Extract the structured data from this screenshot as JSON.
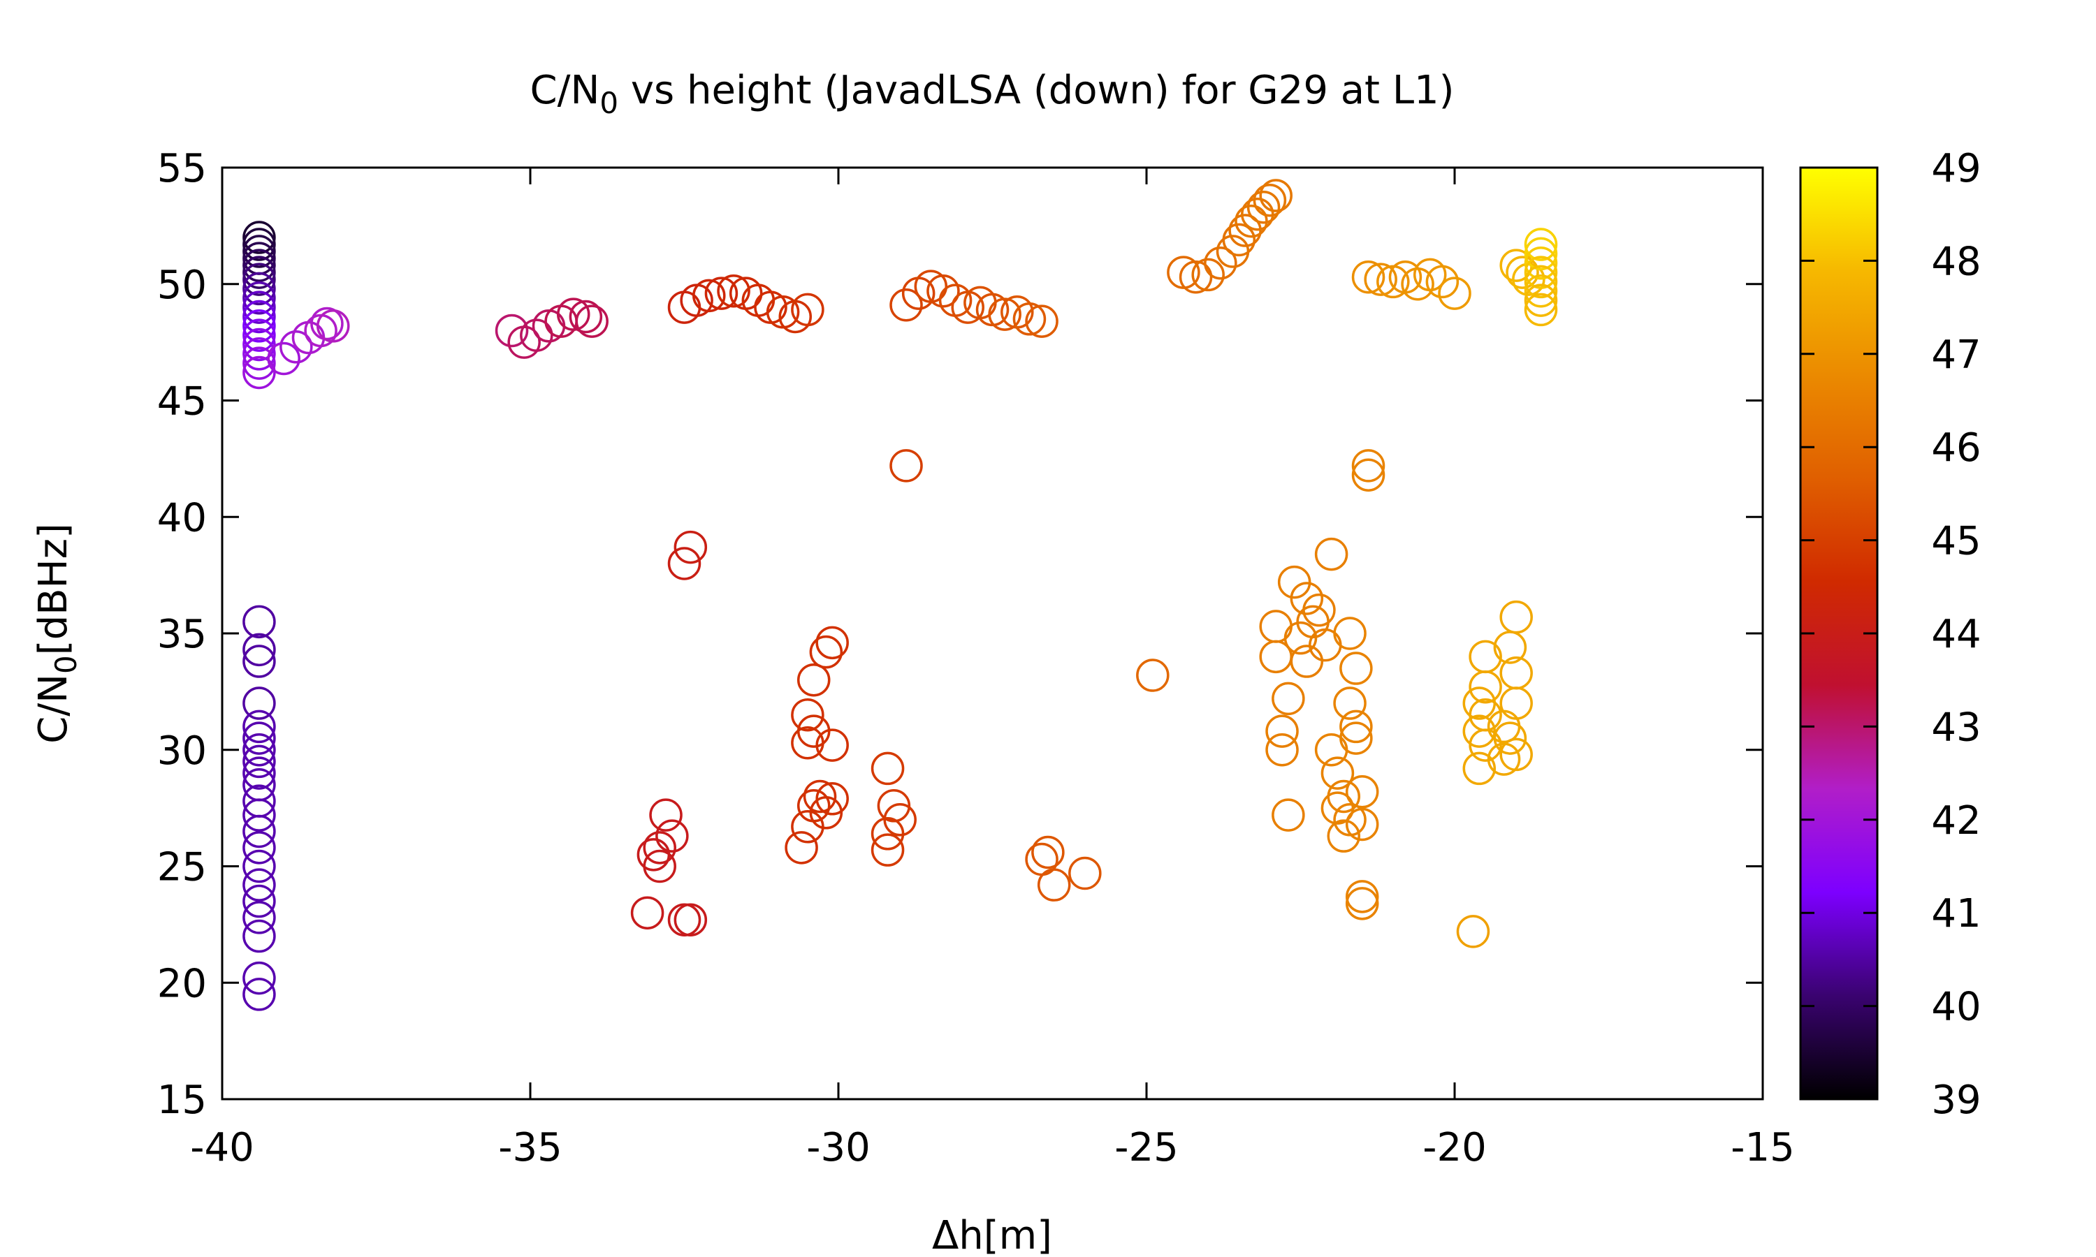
{
  "chart_data": {
    "type": "scatter",
    "title": "C/N",
    "title_sub": "0",
    "title_rest": " vs height (JavadLSA (down) for G29 at L1)",
    "xlabel": "Δh[m]",
    "ylabel": "C/N",
    "ylabel_sub": "0",
    "ylabel_rest": "[dBHz]",
    "xlim": [
      -40,
      -15
    ],
    "ylim": [
      15,
      55
    ],
    "xticks": [
      "-40",
      "-35",
      "-30",
      "-25",
      "-20",
      "-15"
    ],
    "yticks": [
      "15",
      "20",
      "25",
      "30",
      "35",
      "40",
      "45",
      "50",
      "55"
    ],
    "colorbar": {
      "range": [
        39,
        49
      ],
      "ticks": [
        "39",
        "40",
        "41",
        "42",
        "43",
        "44",
        "45",
        "46",
        "47",
        "48",
        "49"
      ],
      "palette": [
        "#000000",
        "#3a0370",
        "#7d00ff",
        "#b11ec8",
        "#c01030",
        "#d02a00",
        "#e05f00",
        "#eb8a00",
        "#f6b800",
        "#ffff00"
      ]
    },
    "marker": "open-circle",
    "grid": false,
    "legend": "none",
    "points": [
      [
        -39.4,
        52,
        39.5
      ],
      [
        -39.4,
        51.7,
        39.6
      ],
      [
        -39.4,
        51.4,
        39.7
      ],
      [
        -39.4,
        51.1,
        39.8
      ],
      [
        -39.4,
        50.8,
        39.9
      ],
      [
        -39.4,
        50.5,
        40.0
      ],
      [
        -39.4,
        50.2,
        40.2
      ],
      [
        -39.4,
        49.8,
        40.4
      ],
      [
        -39.4,
        49.4,
        40.6
      ],
      [
        -39.4,
        49.0,
        40.8
      ],
      [
        -39.4,
        48.6,
        41.0
      ],
      [
        -39.4,
        48.2,
        41.2
      ],
      [
        -39.4,
        47.8,
        41.4
      ],
      [
        -39.4,
        47.4,
        41.6
      ],
      [
        -39.4,
        47.0,
        41.7
      ],
      [
        -39.4,
        46.6,
        41.8
      ],
      [
        -39.4,
        46.2,
        41.9
      ],
      [
        -39.0,
        46.8,
        42.0
      ],
      [
        -38.8,
        47.3,
        42.1
      ],
      [
        -38.6,
        47.7,
        42.2
      ],
      [
        -38.4,
        48.0,
        42.3
      ],
      [
        -38.3,
        48.3,
        42.3
      ],
      [
        -38.2,
        48.2,
        42.4
      ],
      [
        -39.4,
        35.5,
        40.5
      ],
      [
        -39.4,
        34.3,
        40.5
      ],
      [
        -39.4,
        33.8,
        40.5
      ],
      [
        -39.4,
        32.0,
        40.5
      ],
      [
        -39.4,
        31.0,
        40.6
      ],
      [
        -39.4,
        30.5,
        40.6
      ],
      [
        -39.4,
        30.0,
        40.6
      ],
      [
        -39.4,
        29.5,
        40.6
      ],
      [
        -39.4,
        29.0,
        40.6
      ],
      [
        -39.4,
        28.5,
        40.6
      ],
      [
        -39.4,
        27.8,
        40.6
      ],
      [
        -39.4,
        27.2,
        40.6
      ],
      [
        -39.4,
        26.5,
        40.6
      ],
      [
        -39.4,
        25.8,
        40.6
      ],
      [
        -39.4,
        25.0,
        40.6
      ],
      [
        -39.4,
        24.2,
        40.6
      ],
      [
        -39.4,
        23.5,
        40.6
      ],
      [
        -39.4,
        22.8,
        40.6
      ],
      [
        -39.4,
        22.0,
        40.6
      ],
      [
        -39.4,
        20.2,
        40.6
      ],
      [
        -39.4,
        19.5,
        40.6
      ],
      [
        -35.3,
        48.0,
        43.0
      ],
      [
        -35.1,
        47.5,
        43.1
      ],
      [
        -34.9,
        47.8,
        43.1
      ],
      [
        -34.7,
        48.2,
        43.1
      ],
      [
        -34.5,
        48.4,
        43.2
      ],
      [
        -34.3,
        48.7,
        43.2
      ],
      [
        -34.1,
        48.6,
        43.2
      ],
      [
        -34.0,
        48.4,
        43.2
      ],
      [
        -32.5,
        49.0,
        44.3
      ],
      [
        -32.3,
        49.3,
        44.3
      ],
      [
        -32.1,
        49.5,
        44.4
      ],
      [
        -31.9,
        49.6,
        44.4
      ],
      [
        -31.7,
        49.7,
        44.5
      ],
      [
        -31.5,
        49.6,
        44.5
      ],
      [
        -31.3,
        49.3,
        44.6
      ],
      [
        -31.1,
        49.0,
        44.6
      ],
      [
        -30.9,
        48.8,
        44.7
      ],
      [
        -30.7,
        48.6,
        44.7
      ],
      [
        -30.5,
        48.9,
        44.8
      ],
      [
        -28.9,
        49.1,
        45.1
      ],
      [
        -28.7,
        49.6,
        45.1
      ],
      [
        -28.5,
        49.9,
        45.2
      ],
      [
        -28.3,
        49.7,
        45.2
      ],
      [
        -28.1,
        49.3,
        45.3
      ],
      [
        -27.9,
        49.0,
        45.3
      ],
      [
        -27.7,
        49.2,
        45.4
      ],
      [
        -27.5,
        48.9,
        45.4
      ],
      [
        -27.3,
        48.7,
        45.5
      ],
      [
        -27.1,
        48.8,
        45.5
      ],
      [
        -26.9,
        48.5,
        45.6
      ],
      [
        -26.7,
        48.4,
        45.6
      ],
      [
        -24.4,
        50.5,
        46.0
      ],
      [
        -24.2,
        50.3,
        46.0
      ],
      [
        -24.0,
        50.4,
        46.1
      ],
      [
        -23.8,
        50.9,
        46.1
      ],
      [
        -23.6,
        51.4,
        46.2
      ],
      [
        -23.5,
        51.9,
        46.2
      ],
      [
        -23.4,
        52.3,
        46.2
      ],
      [
        -23.3,
        52.7,
        46.3
      ],
      [
        -23.2,
        53.0,
        46.3
      ],
      [
        -23.1,
        53.3,
        46.3
      ],
      [
        -23.0,
        53.6,
        46.3
      ],
      [
        -22.9,
        53.8,
        46.3
      ],
      [
        -21.4,
        50.3,
        46.9
      ],
      [
        -21.2,
        50.2,
        46.9
      ],
      [
        -21.0,
        50.1,
        47.0
      ],
      [
        -20.8,
        50.3,
        47.0
      ],
      [
        -20.6,
        50.0,
        47.0
      ],
      [
        -20.4,
        50.4,
        47.1
      ],
      [
        -20.2,
        50.1,
        47.1
      ],
      [
        -20.0,
        49.6,
        47.2
      ],
      [
        -19.0,
        50.8,
        47.8
      ],
      [
        -18.9,
        50.5,
        47.8
      ],
      [
        -18.8,
        50.2,
        47.9
      ],
      [
        -18.6,
        51.7,
        48.3
      ],
      [
        -18.6,
        51.3,
        48.3
      ],
      [
        -18.6,
        50.9,
        48.2
      ],
      [
        -18.6,
        50.5,
        48.1
      ],
      [
        -18.6,
        50.1,
        48.0
      ],
      [
        -18.6,
        49.7,
        48.0
      ],
      [
        -18.6,
        49.3,
        47.9
      ],
      [
        -18.6,
        48.9,
        47.9
      ],
      [
        -28.9,
        42.2,
        45.0
      ],
      [
        -32.4,
        38.7,
        44.1
      ],
      [
        -32.5,
        38.0,
        44.1
      ],
      [
        -33.1,
        23.0,
        43.9
      ],
      [
        -32.5,
        22.7,
        43.9
      ],
      [
        -32.4,
        22.7,
        43.9
      ],
      [
        -32.8,
        27.2,
        43.9
      ],
      [
        -32.7,
        26.3,
        43.9
      ],
      [
        -32.9,
        25.8,
        43.9
      ],
      [
        -33.0,
        25.5,
        43.9
      ],
      [
        -32.9,
        25.0,
        43.9
      ],
      [
        -30.1,
        34.6,
        44.7
      ],
      [
        -30.2,
        34.2,
        44.7
      ],
      [
        -30.4,
        33.0,
        44.7
      ],
      [
        -30.5,
        31.5,
        44.7
      ],
      [
        -30.4,
        30.8,
        44.7
      ],
      [
        -30.5,
        30.3,
        44.7
      ],
      [
        -30.1,
        30.2,
        44.7
      ],
      [
        -30.3,
        28.0,
        44.7
      ],
      [
        -30.1,
        27.9,
        44.7
      ],
      [
        -30.4,
        27.6,
        44.7
      ],
      [
        -30.2,
        27.3,
        44.7
      ],
      [
        -30.5,
        26.7,
        44.7
      ],
      [
        -30.6,
        25.8,
        44.7
      ],
      [
        -29.2,
        29.2,
        44.9
      ],
      [
        -29.1,
        27.6,
        44.9
      ],
      [
        -29.0,
        27.0,
        44.9
      ],
      [
        -29.2,
        26.4,
        44.9
      ],
      [
        -29.2,
        25.7,
        44.9
      ],
      [
        -26.6,
        25.6,
        45.5
      ],
      [
        -26.7,
        25.3,
        45.5
      ],
      [
        -26.5,
        24.2,
        45.5
      ],
      [
        -26.0,
        24.7,
        45.5
      ],
      [
        -24.9,
        33.2,
        45.9
      ],
      [
        -21.4,
        42.2,
        46.6
      ],
      [
        -21.4,
        41.8,
        46.6
      ],
      [
        -22.0,
        38.4,
        46.5
      ],
      [
        -22.6,
        37.2,
        46.5
      ],
      [
        -22.4,
        36.5,
        46.5
      ],
      [
        -22.2,
        36.0,
        46.5
      ],
      [
        -22.3,
        35.5,
        46.5
      ],
      [
        -22.9,
        35.3,
        46.5
      ],
      [
        -22.5,
        34.8,
        46.5
      ],
      [
        -22.1,
        34.5,
        46.5
      ],
      [
        -22.9,
        34.0,
        46.5
      ],
      [
        -22.4,
        33.8,
        46.5
      ],
      [
        -22.7,
        32.2,
        46.5
      ],
      [
        -22.8,
        30.8,
        46.5
      ],
      [
        -22.8,
        30.0,
        46.5
      ],
      [
        -22.7,
        27.2,
        46.5
      ],
      [
        -21.7,
        35.0,
        46.6
      ],
      [
        -21.6,
        33.5,
        46.6
      ],
      [
        -21.7,
        32.0,
        46.6
      ],
      [
        -21.6,
        31.0,
        46.6
      ],
      [
        -21.6,
        30.5,
        46.6
      ],
      [
        -22.0,
        30.0,
        46.6
      ],
      [
        -21.9,
        29.0,
        46.6
      ],
      [
        -21.8,
        28.0,
        46.6
      ],
      [
        -21.9,
        27.5,
        46.6
      ],
      [
        -21.7,
        27.0,
        46.6
      ],
      [
        -21.8,
        26.3,
        46.6
      ],
      [
        -21.5,
        28.2,
        46.6
      ],
      [
        -21.5,
        26.8,
        46.6
      ],
      [
        -21.5,
        23.7,
        46.6
      ],
      [
        -21.5,
        23.4,
        46.6
      ],
      [
        -19.0,
        35.7,
        47.5
      ],
      [
        -19.1,
        34.4,
        47.5
      ],
      [
        -19.5,
        34.0,
        47.5
      ],
      [
        -19.0,
        33.3,
        47.5
      ],
      [
        -19.5,
        32.7,
        47.5
      ],
      [
        -19.6,
        32.0,
        47.5
      ],
      [
        -19.0,
        32.0,
        47.5
      ],
      [
        -19.5,
        31.5,
        47.5
      ],
      [
        -19.2,
        31.0,
        47.5
      ],
      [
        -19.6,
        30.8,
        47.5
      ],
      [
        -19.1,
        30.5,
        47.5
      ],
      [
        -19.5,
        30.2,
        47.5
      ],
      [
        -19.2,
        29.6,
        47.5
      ],
      [
        -19.0,
        29.8,
        47.5
      ],
      [
        -19.6,
        29.2,
        47.5
      ],
      [
        -19.7,
        22.2,
        47.3
      ]
    ]
  }
}
